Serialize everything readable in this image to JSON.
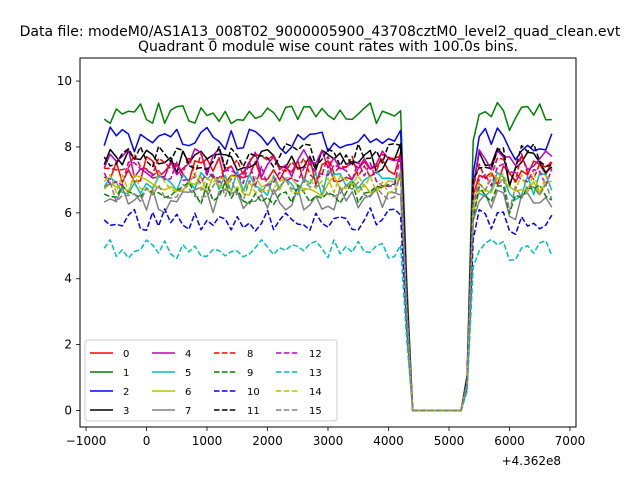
{
  "chart_data": {
    "type": "line",
    "suptitle": "Data file: modeM0/AS1A13_008T02_9000005900_43708cztM0_level2_quad_clean.evt",
    "title": "Quadrant 0 module wise count rates with 100.0s bins.",
    "xlabel": "",
    "ylabel": "",
    "offset_text": "+4.362e8",
    "xlim": [
      -1100,
      7100
    ],
    "ylim": [
      -0.5,
      10.7
    ],
    "xticks": [
      -1000,
      0,
      1000,
      2000,
      3000,
      4000,
      5000,
      6000,
      7000
    ],
    "xtick_labels": [
      "−1000",
      "0",
      "1000",
      "2000",
      "3000",
      "4000",
      "5000",
      "6000",
      "7000"
    ],
    "yticks": [
      0,
      2,
      4,
      6,
      8,
      10
    ],
    "ytick_labels": [
      "0",
      "2",
      "4",
      "6",
      "8",
      "10"
    ],
    "x_start": -700,
    "x_step": 100,
    "gap_start_index": 51,
    "gap_end_index": 59,
    "legend_position": "lower-left",
    "series": [
      {
        "name": "0",
        "color": "#ff0000",
        "dash": "solid",
        "base": 7.3,
        "amp": 0.45,
        "seed": 1
      },
      {
        "name": "1",
        "color": "#008000",
        "dash": "solid",
        "base": 9.0,
        "amp": 0.35,
        "seed": 2
      },
      {
        "name": "2",
        "color": "#0000ff",
        "dash": "solid",
        "base": 8.2,
        "amp": 0.4,
        "seed": 3
      },
      {
        "name": "3",
        "color": "#000000",
        "dash": "solid",
        "base": 7.6,
        "amp": 0.4,
        "seed": 4
      },
      {
        "name": "4",
        "color": "#bf00bf",
        "dash": "solid",
        "base": 7.5,
        "amp": 0.45,
        "seed": 5
      },
      {
        "name": "5",
        "color": "#00bfbf",
        "dash": "solid",
        "base": 6.9,
        "amp": 0.4,
        "seed": 6
      },
      {
        "name": "6",
        "color": "#bfbf00",
        "dash": "solid",
        "base": 6.8,
        "amp": 0.35,
        "seed": 7
      },
      {
        "name": "7",
        "color": "#808080",
        "dash": "solid",
        "base": 6.4,
        "amp": 0.4,
        "seed": 8
      },
      {
        "name": "8",
        "color": "#ff0000",
        "dash": "dashed",
        "base": 7.4,
        "amp": 0.4,
        "seed": 9
      },
      {
        "name": "9",
        "color": "#008000",
        "dash": "dashed",
        "base": 6.6,
        "amp": 0.35,
        "seed": 10
      },
      {
        "name": "10",
        "color": "#0000ff",
        "dash": "dashed",
        "base": 5.8,
        "amp": 0.35,
        "seed": 11
      },
      {
        "name": "11",
        "color": "#000000",
        "dash": "dashed",
        "base": 7.7,
        "amp": 0.4,
        "seed": 12
      },
      {
        "name": "12",
        "color": "#bf00bf",
        "dash": "dashed",
        "base": 7.2,
        "amp": 0.4,
        "seed": 13
      },
      {
        "name": "13",
        "color": "#00bfbf",
        "dash": "dashed",
        "base": 4.9,
        "amp": 0.3,
        "seed": 14
      },
      {
        "name": "14",
        "color": "#bfbf00",
        "dash": "dashed",
        "base": 6.9,
        "amp": 0.35,
        "seed": 15
      },
      {
        "name": "15",
        "color": "#808080",
        "dash": "dashed",
        "base": 6.7,
        "amp": 0.4,
        "seed": 16
      }
    ]
  }
}
